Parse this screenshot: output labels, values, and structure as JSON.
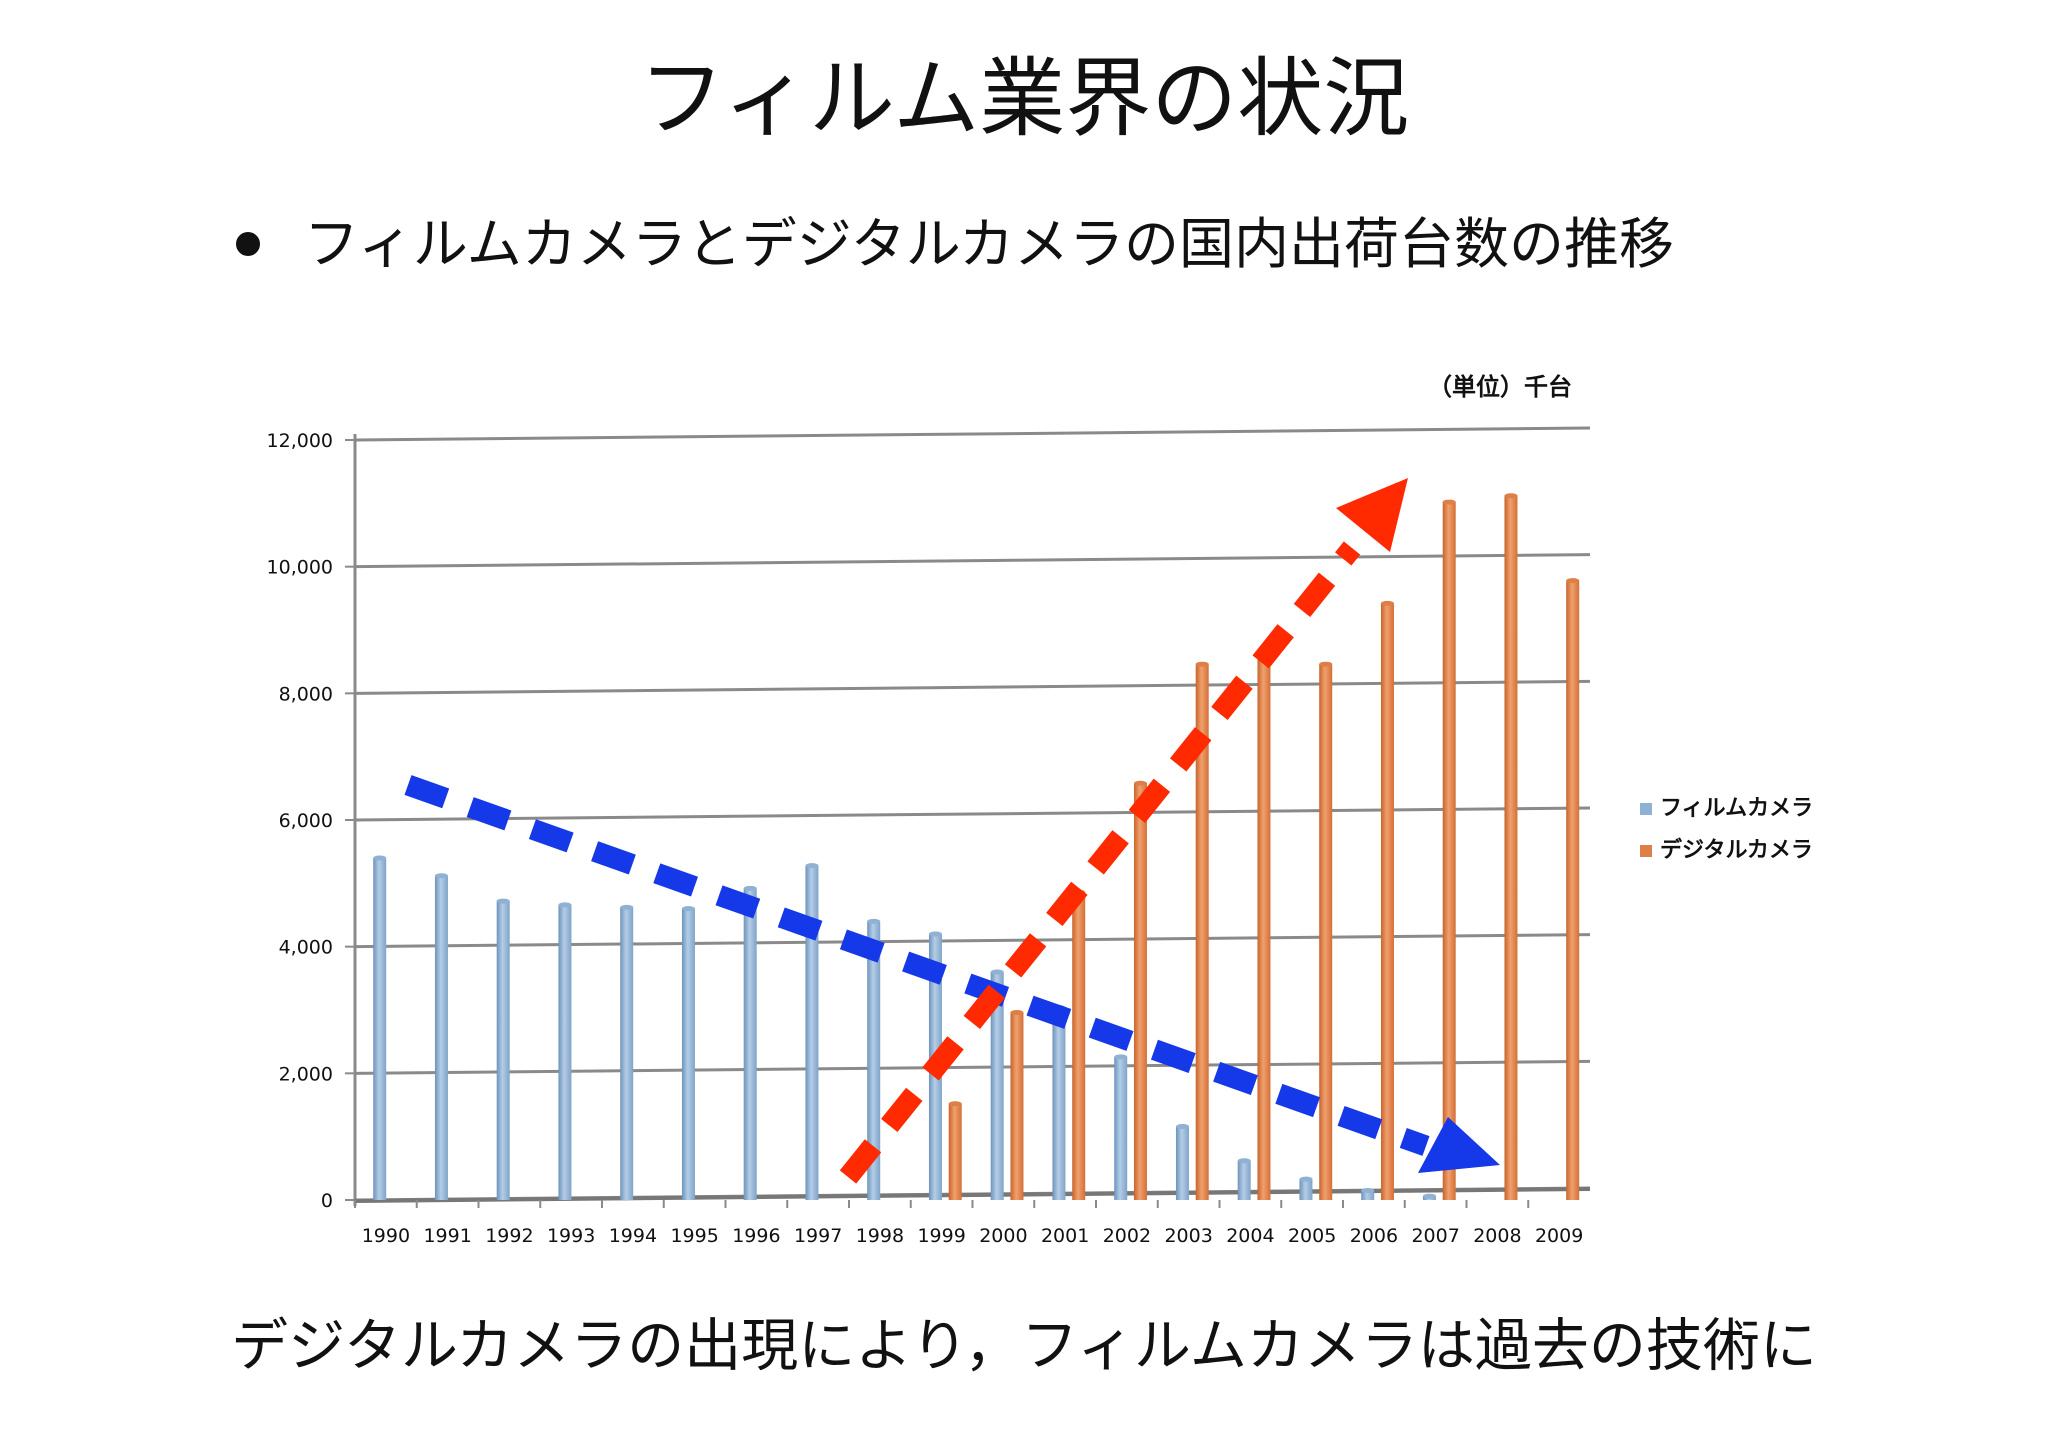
{
  "slide": {
    "title": "フィルム業界の状況",
    "bullet": "フィルムカメラとデジタルカメラの国内出荷台数の推移",
    "footer": "デジタルカメラの出現により，フィルムカメラは過去の技術に"
  },
  "colors": {
    "film": "#8fb1d3",
    "digital": "#df7f48",
    "arrow_down": "#1538e8",
    "arrow_up": "#ff2a00",
    "grid": "#8a8a8a"
  },
  "chart_data": {
    "type": "bar",
    "unit_label": "（単位）千台",
    "categories": [
      "1990",
      "1991",
      "1992",
      "1993",
      "1994",
      "1995",
      "1996",
      "1997",
      "1998",
      "1999",
      "2000",
      "2001",
      "2002",
      "2003",
      "2004",
      "2005",
      "2006",
      "2007",
      "2008",
      "2009"
    ],
    "series": [
      {
        "name": "フィルムカメラ",
        "values": [
          5400,
          5120,
          4720,
          4660,
          4620,
          4600,
          4920,
          5280,
          4400,
          4200,
          3600,
          3040,
          2260,
          1160,
          620,
          330,
          150,
          60,
          0,
          0
        ]
      },
      {
        "name": "デジタルカメラ",
        "values": [
          0,
          0,
          0,
          0,
          0,
          0,
          0,
          0,
          0,
          1520,
          2960,
          4860,
          6580,
          8460,
          8560,
          8460,
          9420,
          11020,
          11120,
          9780
        ]
      }
    ],
    "ylim": [
      0,
      12000
    ],
    "yticks": [
      "0",
      "2,000",
      "4,000",
      "6,000",
      "8,000",
      "10,000",
      "12,000"
    ],
    "grid": true,
    "legend_position": "right",
    "annotations": [
      {
        "name": "film-decline-trend-arrow",
        "direction": "down-right",
        "style": "dashed",
        "color": "blue"
      },
      {
        "name": "digital-growth-trend-arrow",
        "direction": "up-right",
        "style": "dashed",
        "color": "red"
      }
    ]
  }
}
